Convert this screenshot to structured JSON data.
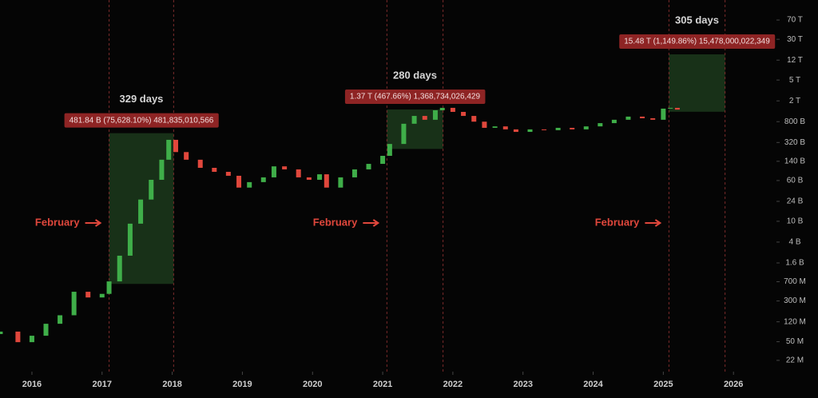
{
  "chart_data": {
    "type": "candlestick",
    "log_scale": true,
    "up_color": "#3fae49",
    "down_color": "#e0473c",
    "x": [
      2015.55,
      2015.8,
      2016.0,
      2016.2,
      2016.4,
      2016.6,
      2016.8,
      2017.0,
      2017.1,
      2017.25,
      2017.4,
      2017.55,
      2017.7,
      2017.85,
      2017.95,
      2018.05,
      2018.2,
      2018.4,
      2018.6,
      2018.8,
      2018.95,
      2019.1,
      2019.3,
      2019.45,
      2019.6,
      2019.8,
      2019.95,
      2020.1,
      2020.2,
      2020.4,
      2020.6,
      2020.8,
      2021.0,
      2021.1,
      2021.3,
      2021.45,
      2021.6,
      2021.75,
      2021.85,
      2022.0,
      2022.15,
      2022.3,
      2022.45,
      2022.6,
      2022.75,
      2022.9,
      2023.1,
      2023.3,
      2023.5,
      2023.7,
      2023.9,
      2024.1,
      2024.3,
      2024.5,
      2024.7,
      2024.85,
      2025.0,
      2025.1,
      2025.2
    ],
    "open": [
      70000000.0,
      78000000.0,
      49000000.0,
      65000000.0,
      110000000.0,
      160000000.0,
      450000000.0,
      350000000.0,
      410000000.0,
      710000000.0,
      2200000000.0,
      9000000000.0,
      26000000000.0,
      62000000000.0,
      150000000000.0,
      360000000000.0,
      210000000000.0,
      150000000000.0,
      105000000000.0,
      88000000000.0,
      74000000000.0,
      44000000000.0,
      56000000000.0,
      69000000000.0,
      112000000000.0,
      98000000000.0,
      69000000000.0,
      62000000000.0,
      79000000000.0,
      44000000000.0,
      69000000000.0,
      98000000000.0,
      125000000000.0,
      178000000000.0,
      300000000000.0,
      730000000000.0,
      1030000000000.0,
      870000000000.0,
      1320000000000.0,
      1470000000000.0,
      1230000000000.0,
      1030000000000.0,
      800000000000.0,
      610000000000.0,
      650000000000.0,
      570000000000.0,
      510000000000.0,
      570000000000.0,
      550000000000.0,
      610000000000.0,
      570000000000.0,
      650000000000.0,
      750000000000.0,
      870000000000.0,
      1000000000000.0,
      930000000000.0,
      870000000000.0,
      1420000000000.0,
      1470000000000.0
    ],
    "close": [
      78000000.0,
      49000000.0,
      65000000.0,
      110000000.0,
      160000000.0,
      450000000.0,
      350000000.0,
      410000000.0,
      710000000.0,
      2200000000.0,
      9000000000.0,
      26000000000.0,
      62000000000.0,
      150000000000.0,
      360000000000.0,
      210000000000.0,
      150000000000.0,
      105000000000.0,
      88000000000.0,
      74000000000.0,
      44000000000.0,
      56000000000.0,
      69000000000.0,
      112000000000.0,
      98000000000.0,
      69000000000.0,
      62000000000.0,
      79000000000.0,
      44000000000.0,
      69000000000.0,
      98000000000.0,
      125000000000.0,
      178000000000.0,
      300000000000.0,
      730000000000.0,
      1030000000000.0,
      870000000000.0,
      1320000000000.0,
      1470000000000.0,
      1230000000000.0,
      1030000000000.0,
      800000000000.0,
      610000000000.0,
      650000000000.0,
      570000000000.0,
      510000000000.0,
      570000000000.0,
      550000000000.0,
      610000000000.0,
      570000000000.0,
      650000000000.0,
      750000000000.0,
      870000000000.0,
      1000000000000.0,
      930000000000.0,
      870000000000.0,
      1420000000000.0,
      1470000000000.0,
      1360000000000.0
    ],
    "xlim": [
      2015.545,
      2026.59
    ],
    "xticks": [
      2016,
      2017,
      2018,
      2019,
      2020,
      2021,
      2022,
      2023,
      2024,
      2025,
      2026
    ],
    "ylim": [
      13400000.0,
      169000000000000.0
    ],
    "yticks": [
      {
        "value": 70000000000000.0,
        "label": "70 T"
      },
      {
        "value": 30000000000000.0,
        "label": "30 T"
      },
      {
        "value": 12000000000000.0,
        "label": "12 T"
      },
      {
        "value": 5000000000000.0,
        "label": "5 T"
      },
      {
        "value": 2000000000000.0,
        "label": "2 T"
      },
      {
        "value": 800000000000.0,
        "label": "800 B"
      },
      {
        "value": 320000000000.0,
        "label": "320 B"
      },
      {
        "value": 140000000000.0,
        "label": "140 B"
      },
      {
        "value": 60000000000.0,
        "label": "60 B"
      },
      {
        "value": 24000000000.0,
        "label": "24 B"
      },
      {
        "value": 10000000000.0,
        "label": "10 B"
      },
      {
        "value": 4000000000.0,
        "label": "4 B"
      },
      {
        "value": 1600000000.0,
        "label": "1.6 B"
      },
      {
        "value": 700000000.0,
        "label": "700 M"
      },
      {
        "value": 300000000.0,
        "label": "300 M"
      },
      {
        "value": 120000000.0,
        "label": "120 M"
      },
      {
        "value": 50000000.0,
        "label": "50 M"
      },
      {
        "value": 22000000.0,
        "label": "22 M"
      }
    ],
    "ranges": [
      {
        "start": 2017.1,
        "end": 2018.02,
        "low": 636000000,
        "high": 481835010566,
        "days_label": "329 days",
        "change_label": "481.84 B (75,628.10%) 481,835,010,566",
        "marker_label": "February"
      },
      {
        "start": 2021.06,
        "end": 2021.86,
        "low": 241000000000,
        "high": 1368734026429,
        "days_label": "280 days",
        "change_label": "1.37 T (467.66%) 1,368,734,026,429",
        "marker_label": "February"
      },
      {
        "start": 2025.08,
        "end": 2025.88,
        "low": 1238000000000,
        "high": 15478000022349,
        "days_label": "305 days",
        "change_label": "15.48 T (1,149.86%) 15,478,000,022,349",
        "marker_label": "February"
      }
    ],
    "range_fill": "#1c3a1c",
    "label_fill": "#8e2424",
    "marker_color": "#e0473c"
  }
}
